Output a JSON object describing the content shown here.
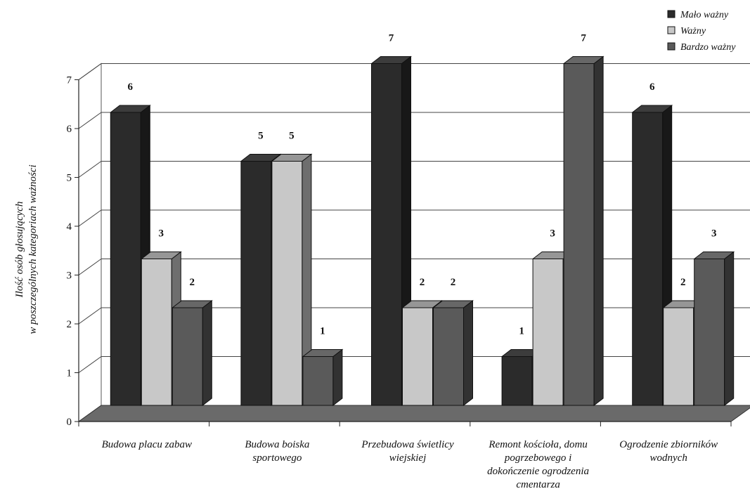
{
  "chart_data": {
    "type": "bar",
    "style": "3d-clustered-column",
    "categories": [
      [
        "Budowa placu zabaw"
      ],
      [
        "Budowa boiska",
        "sportowego"
      ],
      [
        "Przebudowa świetlicy",
        "wiejskiej"
      ],
      [
        "Remont kościoła, domu",
        "pogrzebowego i",
        "dokończenie ogrodzenia",
        "cmentarza"
      ],
      [
        "Ogrodzenie zbiorników",
        "wodnych"
      ]
    ],
    "series": [
      {
        "name": "Mało ważny",
        "values": [
          6,
          5,
          7,
          1,
          6
        ],
        "color": "#2b2b2b"
      },
      {
        "name": "Ważny",
        "values": [
          3,
          5,
          2,
          3,
          2
        ],
        "color": "#c8c8c8"
      },
      {
        "name": "Bardzo ważny",
        "values": [
          2,
          1,
          2,
          7,
          3
        ],
        "color": "#5a5a5a"
      }
    ],
    "ylabel": [
      "Ilość osób głosujących",
      "w poszczególnych kategoriach ważności"
    ],
    "yticks": [
      0,
      1,
      2,
      3,
      4,
      5,
      6,
      7
    ],
    "ylim": [
      0,
      7
    ],
    "grid": true,
    "legend_position": "top-right"
  }
}
